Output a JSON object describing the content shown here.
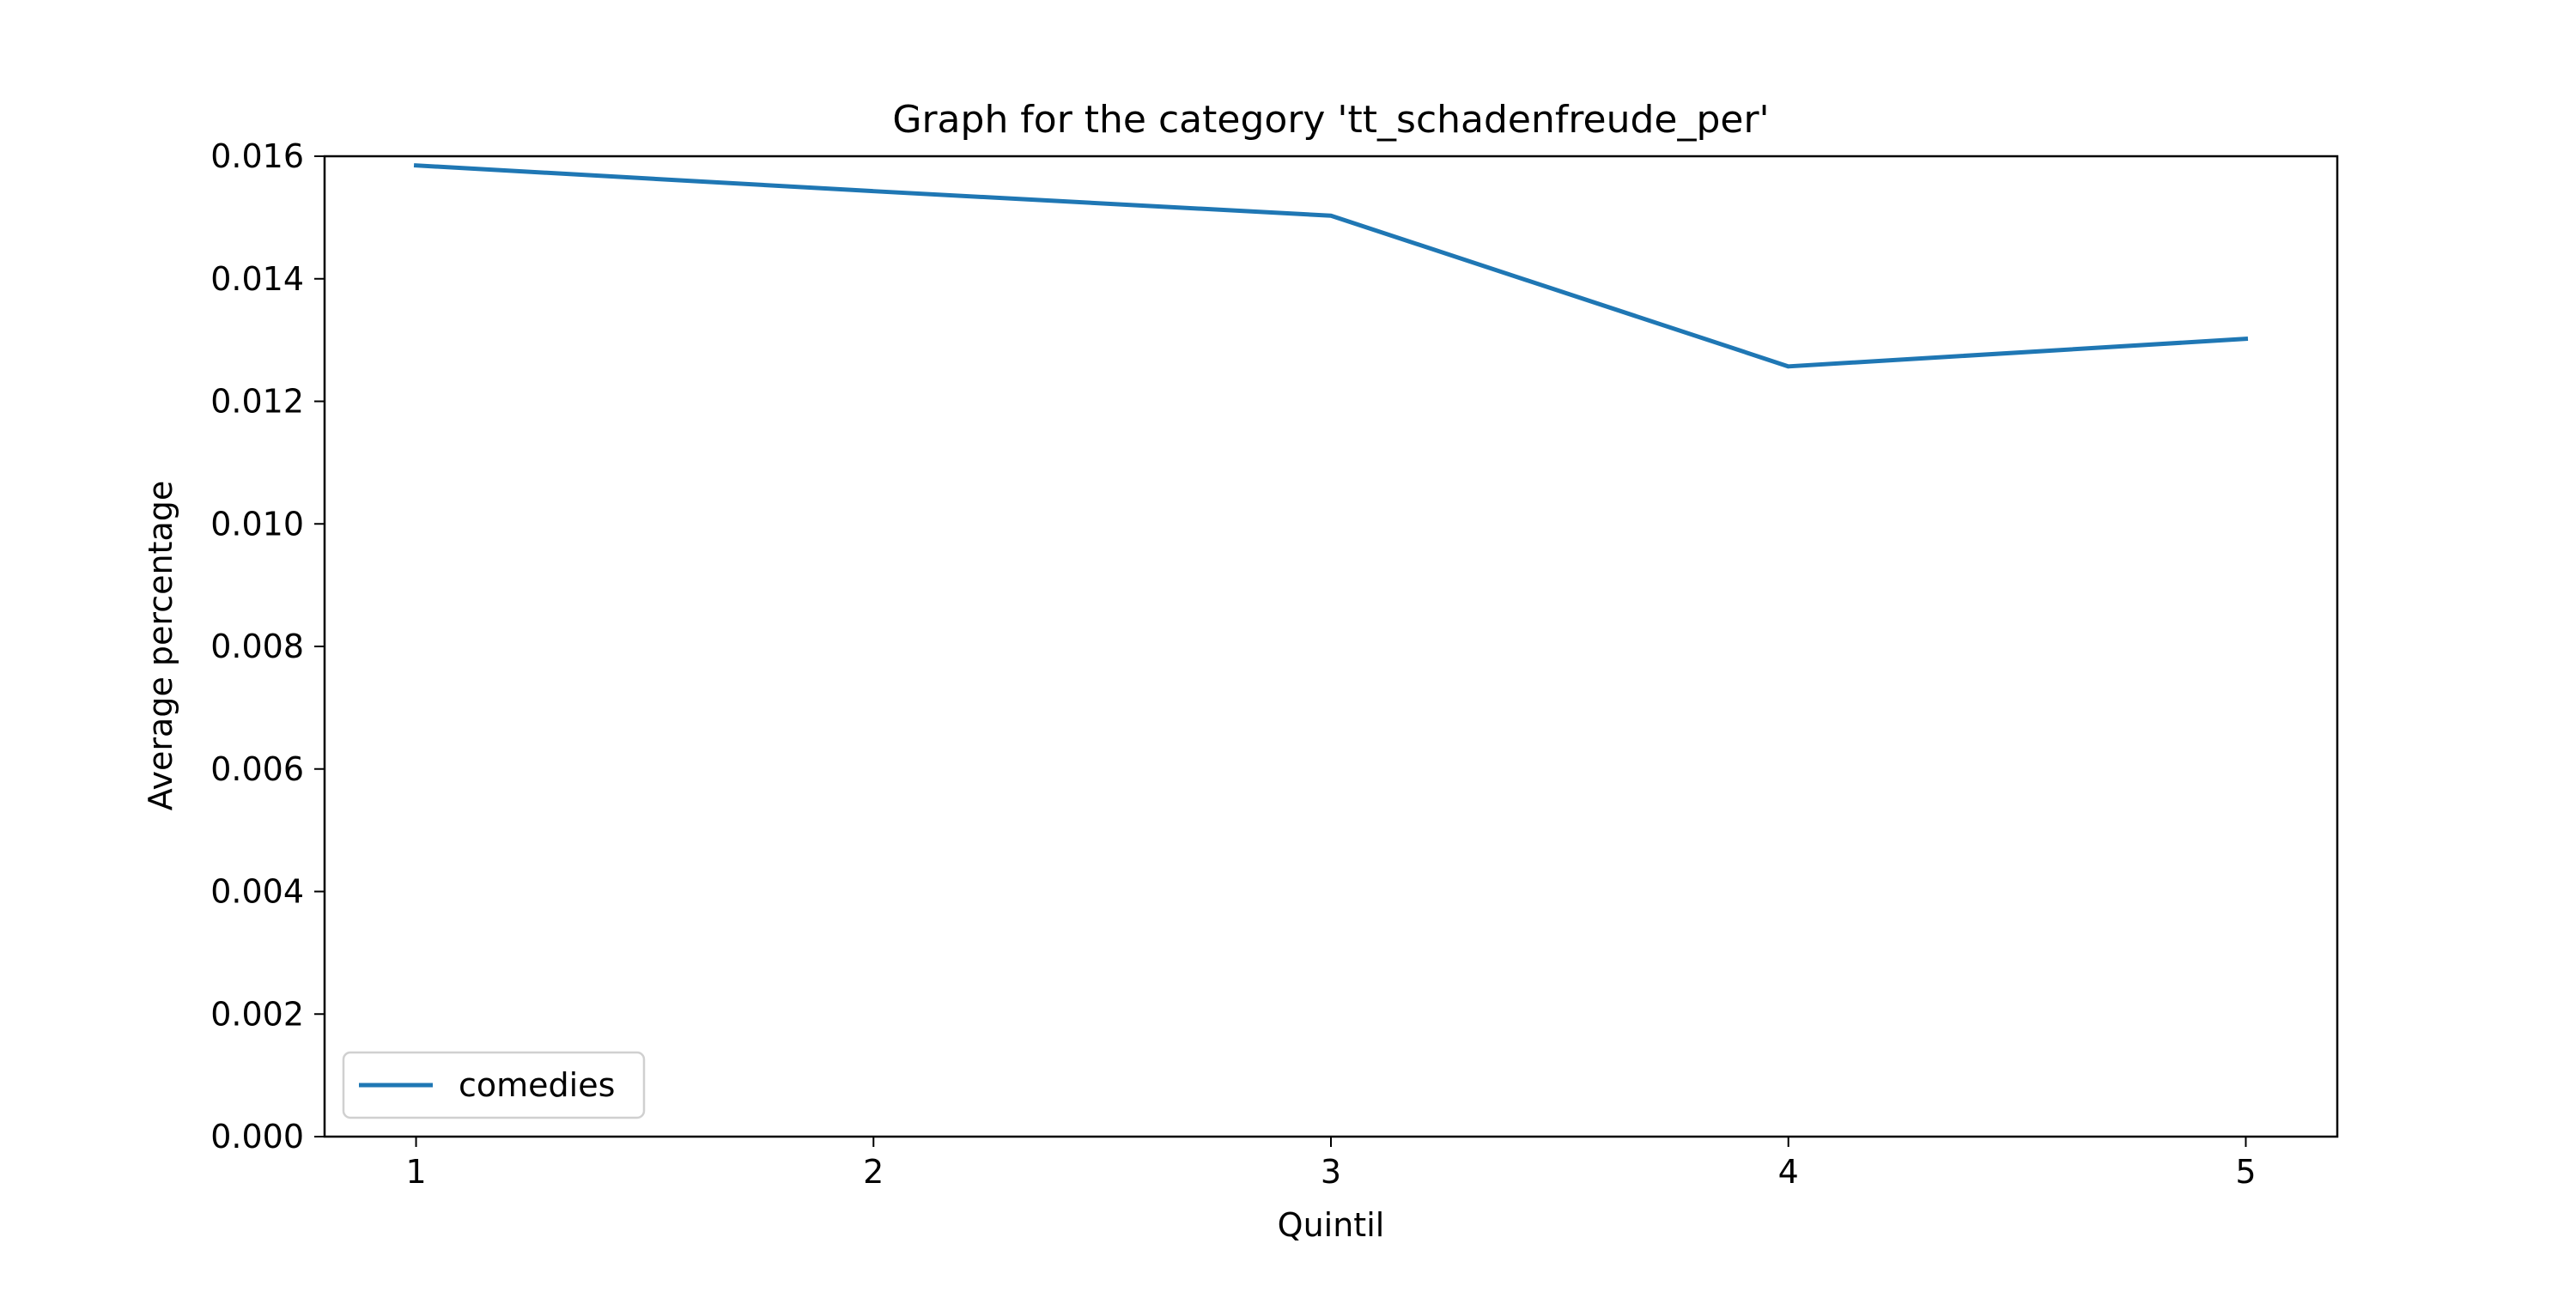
{
  "chart_data": {
    "type": "line",
    "title": "Graph for the category 'tt_schadenfreude_per'",
    "xlabel": "Quintil",
    "ylabel": "Average percentage",
    "x": [
      1,
      2,
      3,
      4,
      5
    ],
    "xlim": [
      0.8,
      5.2
    ],
    "ylim": [
      0,
      0.016
    ],
    "x_ticks": [
      "1",
      "2",
      "3",
      "4",
      "5"
    ],
    "y_ticks": [
      "0.000",
      "0.002",
      "0.004",
      "0.006",
      "0.008",
      "0.010",
      "0.012",
      "0.014",
      "0.016"
    ],
    "grid": false,
    "legend_position": "lower-left",
    "series": [
      {
        "name": "comedies",
        "color": "#1f77b4",
        "values": [
          0.01585,
          0.01543,
          0.01503,
          0.01257,
          0.01302
        ]
      }
    ]
  }
}
